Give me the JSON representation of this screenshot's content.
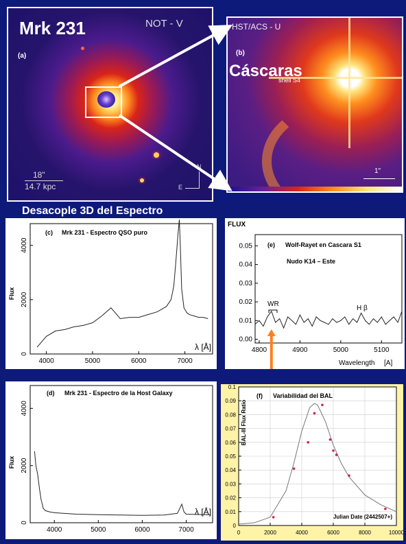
{
  "panel_a": {
    "title": "Mrk 231",
    "instrument": "NOT - V",
    "tag": "(a)",
    "scale_arcsec": "18\"",
    "scale_kpc": "14.7 kpc",
    "compass_n": "N",
    "compass_e": "E"
  },
  "panel_b": {
    "instrument": "HST/ACS - U",
    "tag": "(b)",
    "title": "Cáscaras",
    "shell_label": "shell S4",
    "scale": "1\""
  },
  "section_title": "Desacople 3D del Espectro",
  "colors": {
    "background": "#0d1a7a",
    "arrow": "#ff7f1e",
    "spectrum": "#222222"
  },
  "chart_data": [
    {
      "type": "line",
      "tag": "(c)",
      "title": "Mrk 231 - Espectro QSO puro",
      "ylabel": "Flux",
      "xlabel": "λ [Å]",
      "xlim": [
        3650,
        7600
      ],
      "ylim": [
        0,
        4800
      ],
      "xticks": [
        4000,
        5000,
        6000,
        7000
      ],
      "yticks": [
        0,
        2000,
        4000
      ],
      "x": [
        3800,
        3900,
        4000,
        4200,
        4400,
        4600,
        4800,
        5000,
        5200,
        5400,
        5600,
        5800,
        6000,
        6200,
        6400,
        6500,
        6600,
        6700,
        6760,
        6800,
        6850,
        6880,
        6900,
        6930,
        6980,
        7050,
        7100,
        7200,
        7300,
        7400,
        7500
      ],
      "y": [
        250,
        450,
        650,
        850,
        900,
        1000,
        1050,
        1150,
        1400,
        1700,
        1300,
        1350,
        1350,
        1450,
        1550,
        1650,
        1750,
        2000,
        2500,
        3300,
        4400,
        4950,
        4000,
        2400,
        1700,
        1500,
        1450,
        1400,
        1350,
        1350,
        1300
      ]
    },
    {
      "type": "line",
      "tag": "(e)",
      "title": "Wolf-Rayet en Cascara S1",
      "subtitle": "Nudo K14 – Este",
      "ylabel": "FLUX",
      "xlabel": "Wavelength",
      "xunit": "[A]",
      "xlim": [
        4790,
        5150
      ],
      "ylim": [
        -0.002,
        0.056
      ],
      "xticks": [
        4800,
        4900,
        5000,
        5100
      ],
      "yticks": [
        0.0,
        0.01,
        0.02,
        0.03,
        0.04,
        0.05
      ],
      "ytick_labels": [
        "0.00",
        "0.01",
        "0.02",
        "0.03",
        "0.04",
        "0.05"
      ],
      "annotations": [
        "WR",
        "H β"
      ],
      "x": [
        4790,
        4800,
        4810,
        4820,
        4830,
        4840,
        4850,
        4860,
        4870,
        4880,
        4890,
        4900,
        4910,
        4920,
        4930,
        4940,
        4950,
        4960,
        4970,
        4980,
        4990,
        5000,
        5010,
        5020,
        5030,
        5040,
        5050,
        5060,
        5070,
        5080,
        5090,
        5100,
        5110,
        5120,
        5130,
        5140,
        5150
      ],
      "y": [
        0.008,
        0.01,
        0.007,
        0.012,
        0.015,
        0.009,
        0.011,
        0.006,
        0.012,
        0.01,
        0.008,
        0.013,
        0.009,
        0.011,
        0.007,
        0.012,
        0.01,
        0.009,
        0.008,
        0.011,
        0.009,
        0.01,
        0.012,
        0.008,
        0.011,
        0.009,
        0.014,
        0.01,
        0.008,
        0.011,
        0.009,
        0.012,
        0.008,
        0.01,
        0.012,
        0.009,
        0.015
      ]
    },
    {
      "type": "line",
      "tag": "(d)",
      "title": "Mrk 231 - Espectro de la Host Galaxy",
      "ylabel": "Flux",
      "xlabel": "λ [Å]",
      "xlim": [
        3450,
        7600
      ],
      "ylim": [
        0,
        4800
      ],
      "xticks": [
        4000,
        5000,
        6000,
        7000
      ],
      "yticks": [
        0,
        2000,
        4000
      ],
      "x": [
        3550,
        3580,
        3620,
        3660,
        3700,
        3750,
        3800,
        3900,
        4000,
        4200,
        4500,
        5000,
        5500,
        6000,
        6500,
        6800,
        6900,
        6950,
        7000,
        7200,
        7400,
        7550
      ],
      "y": [
        2500,
        2000,
        1700,
        1200,
        800,
        500,
        420,
        380,
        350,
        330,
        300,
        280,
        270,
        260,
        270,
        330,
        650,
        380,
        300,
        290,
        280,
        280
      ]
    },
    {
      "type": "scatter",
      "tag": "(f)",
      "title": "Variabilidad del BAL",
      "ylabel": "BAL-III Flux Ratio",
      "xlabel": "Julian Date (2442507+)",
      "xlim": [
        0,
        10000
      ],
      "ylim": [
        0,
        0.1
      ],
      "xticks": [
        0,
        2000,
        4000,
        6000,
        8000,
        10000
      ],
      "yticks": [
        0,
        0.01,
        0.02,
        0.03,
        0.04,
        0.05,
        0.06,
        0.07,
        0.08,
        0.09,
        0.1
      ],
      "points_x": [
        2200,
        3500,
        4400,
        4800,
        5300,
        5800,
        6000,
        6200,
        7000,
        9300
      ],
      "points_y": [
        0.006,
        0.041,
        0.06,
        0.081,
        0.087,
        0.062,
        0.054,
        0.051,
        0.036,
        0.012
      ],
      "curve_x": [
        0,
        1000,
        2000,
        3000,
        3500,
        4000,
        4500,
        4800,
        5000,
        5500,
        6000,
        6500,
        7000,
        8000,
        9000,
        10000
      ],
      "curve_y": [
        0.001,
        0.002,
        0.006,
        0.025,
        0.045,
        0.068,
        0.085,
        0.088,
        0.087,
        0.075,
        0.058,
        0.045,
        0.035,
        0.022,
        0.015,
        0.01
      ]
    }
  ]
}
